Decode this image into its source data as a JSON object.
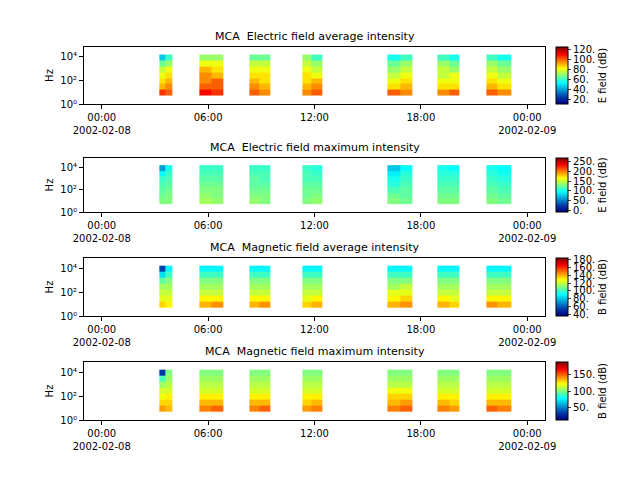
{
  "chart_data": [
    {
      "type": "heatmap",
      "title": "MCA  Electric field average intensity",
      "y_label": "Hz",
      "colorbar_title": "E field (dB)",
      "log": "y",
      "x": [
        "2002-02-08 03:15",
        "2002-02-08 03:35",
        "2002-02-08 04:00",
        "2002-02-08 05:30",
        "2002-02-08 06:10",
        "2002-02-08 06:50",
        "2002-02-08 08:20",
        "2002-02-08 08:55",
        "2002-02-08 09:30",
        "2002-02-08 11:20",
        "2002-02-08 11:50",
        "2002-02-08 12:25",
        "2002-02-08 16:05",
        "2002-02-08 16:50",
        "2002-02-08 17:30",
        "2002-02-08 18:55",
        "2002-02-08 19:35",
        "2002-02-08 20:10",
        "2002-02-08 21:40",
        "2002-02-08 22:20",
        "2002-02-08 23:05"
      ],
      "y": [
        5,
        16,
        50,
        160,
        500,
        1600,
        5000,
        16000
      ],
      "z": [
        [
          105,
          100,
          null,
          110,
          105,
          null,
          100,
          95,
          null,
          95,
          100,
          null,
          100,
          95,
          null,
          95,
          100,
          null,
          100,
          95
        ],
        [
          90,
          95,
          null,
          100,
          100,
          null,
          95,
          90,
          null,
          90,
          95,
          null,
          85,
          90,
          null,
          85,
          85,
          null,
          90,
          85
        ],
        [
          85,
          90,
          null,
          95,
          100,
          null,
          90,
          85,
          null,
          85,
          90,
          null,
          80,
          85,
          null,
          80,
          80,
          null,
          85,
          80
        ],
        [
          80,
          85,
          null,
          95,
          90,
          null,
          85,
          85,
          null,
          85,
          80,
          null,
          75,
          80,
          null,
          75,
          80,
          null,
          80,
          75
        ],
        [
          75,
          80,
          null,
          90,
          85,
          null,
          80,
          80,
          null,
          80,
          75,
          null,
          70,
          75,
          null,
          75,
          70,
          null,
          75,
          70
        ],
        [
          65,
          70,
          null,
          80,
          80,
          null,
          75,
          75,
          null,
          75,
          70,
          null,
          65,
          70,
          null,
          70,
          65,
          null,
          70,
          65
        ],
        [
          45,
          60,
          null,
          70,
          70,
          null,
          65,
          65,
          null,
          70,
          60,
          null,
          55,
          60,
          null,
          60,
          55,
          null,
          60,
          55
        ]
      ],
      "xlim": [
        "2002-02-07 23:00",
        "2002-02-09 01:00"
      ],
      "xticks": [
        {
          "value": "2002-02-08 00:00",
          "label": "00:00\n2002-02-08"
        },
        {
          "value": "2002-02-08 06:00",
          "label": "06:00"
        },
        {
          "value": "2002-02-08 12:00",
          "label": "12:00"
        },
        {
          "value": "2002-02-08 18:00",
          "label": "18:00"
        },
        {
          "value": "2002-02-09 00:00",
          "label": "00:00\n2002-02-09"
        }
      ],
      "ylim": [
        1,
        70000
      ],
      "yticks": [
        {
          "value": 1,
          "label": "10⁰"
        },
        {
          "value": 100,
          "label": "10²"
        },
        {
          "value": 10000,
          "label": "10⁴"
        }
      ],
      "zlim": [
        10,
        125
      ],
      "zticks": [
        {
          "value": 20,
          "label": "20."
        },
        {
          "value": 40,
          "label": "40."
        },
        {
          "value": 60,
          "label": "60."
        },
        {
          "value": 80,
          "label": "80."
        },
        {
          "value": 100,
          "label": "100."
        },
        {
          "value": 120,
          "label": "120."
        }
      ]
    },
    {
      "type": "heatmap",
      "title": "MCA  Electric field maximum intensity",
      "y_label": "Hz",
      "colorbar_title": "E field (dB)",
      "log": "y",
      "x": [
        "2002-02-08 03:15",
        "2002-02-08 03:35",
        "2002-02-08 04:00",
        "2002-02-08 05:30",
        "2002-02-08 06:10",
        "2002-02-08 06:50",
        "2002-02-08 08:20",
        "2002-02-08 08:55",
        "2002-02-08 09:30",
        "2002-02-08 11:20",
        "2002-02-08 11:50",
        "2002-02-08 12:25",
        "2002-02-08 16:05",
        "2002-02-08 16:50",
        "2002-02-08 17:30",
        "2002-02-08 18:55",
        "2002-02-08 19:35",
        "2002-02-08 20:10",
        "2002-02-08 21:40",
        "2002-02-08 22:20",
        "2002-02-08 23:05"
      ],
      "y": [
        5,
        16,
        50,
        160,
        500,
        1600,
        5000,
        16000
      ],
      "z": [
        [
          130,
          130,
          null,
          140,
          135,
          null,
          135,
          130,
          null,
          130,
          135,
          null,
          130,
          125,
          null,
          130,
          130,
          null,
          130,
          125
        ],
        [
          125,
          130,
          null,
          135,
          130,
          null,
          130,
          130,
          null,
          125,
          130,
          null,
          125,
          120,
          null,
          125,
          125,
          null,
          125,
          120
        ],
        [
          120,
          125,
          null,
          130,
          130,
          null,
          125,
          125,
          null,
          125,
          125,
          null,
          115,
          120,
          null,
          120,
          120,
          null,
          120,
          115
        ],
        [
          115,
          120,
          null,
          125,
          125,
          null,
          120,
          120,
          null,
          120,
          120,
          null,
          105,
          115,
          null,
          115,
          115,
          null,
          115,
          110
        ],
        [
          110,
          115,
          null,
          120,
          120,
          null,
          120,
          115,
          null,
          115,
          115,
          null,
          100,
          110,
          null,
          110,
          110,
          null,
          110,
          105
        ],
        [
          95,
          110,
          null,
          115,
          115,
          null,
          115,
          115,
          null,
          115,
          110,
          null,
          90,
          105,
          null,
          105,
          105,
          null,
          105,
          100
        ],
        [
          60,
          100,
          null,
          110,
          110,
          null,
          110,
          110,
          null,
          110,
          105,
          null,
          75,
          95,
          null,
          100,
          95,
          null,
          100,
          95
        ]
      ],
      "xlim": [
        "2002-02-07 23:00",
        "2002-02-09 01:00"
      ],
      "xticks": [
        {
          "value": "2002-02-08 00:00",
          "label": "00:00\n2002-02-08"
        },
        {
          "value": "2002-02-08 06:00",
          "label": "06:00"
        },
        {
          "value": "2002-02-08 12:00",
          "label": "12:00"
        },
        {
          "value": "2002-02-08 18:00",
          "label": "18:00"
        },
        {
          "value": "2002-02-09 00:00",
          "label": "00:00\n2002-02-09"
        }
      ],
      "ylim": [
        1,
        70000
      ],
      "yticks": [
        {
          "value": 1,
          "label": "10⁰"
        },
        {
          "value": 100,
          "label": "10²"
        },
        {
          "value": 10000,
          "label": "10⁴"
        }
      ],
      "zlim": [
        -10,
        270
      ],
      "zticks": [
        {
          "value": 0,
          "label": "0."
        },
        {
          "value": 50,
          "label": "50."
        },
        {
          "value": 100,
          "label": "100."
        },
        {
          "value": 150,
          "label": "150."
        },
        {
          "value": 200,
          "label": "200."
        },
        {
          "value": 250,
          "label": "250."
        }
      ]
    },
    {
      "type": "heatmap",
      "title": "MCA  Magnetic field average intensity",
      "y_label": "Hz",
      "colorbar_title": "B field (dB)",
      "log": "y",
      "x": [
        "2002-02-08 03:15",
        "2002-02-08 03:35",
        "2002-02-08 04:00",
        "2002-02-08 05:30",
        "2002-02-08 06:10",
        "2002-02-08 06:50",
        "2002-02-08 08:20",
        "2002-02-08 08:55",
        "2002-02-08 09:30",
        "2002-02-08 11:20",
        "2002-02-08 11:50",
        "2002-02-08 12:25",
        "2002-02-08 16:05",
        "2002-02-08 16:50",
        "2002-02-08 17:30",
        "2002-02-08 18:55",
        "2002-02-08 19:35",
        "2002-02-08 20:10",
        "2002-02-08 21:40",
        "2002-02-08 22:20",
        "2002-02-08 23:05"
      ],
      "y": [
        5,
        16,
        50,
        160,
        500,
        1600,
        5000,
        16000
      ],
      "z": [
        [
          135,
          130,
          null,
          140,
          145,
          null,
          140,
          145,
          null,
          135,
          140,
          null,
          140,
          145,
          null,
          140,
          135,
          null,
          145,
          140
        ],
        [
          125,
          125,
          null,
          130,
          130,
          null,
          130,
          130,
          null,
          125,
          130,
          null,
          130,
          135,
          null,
          130,
          125,
          null,
          130,
          130
        ],
        [
          120,
          120,
          null,
          120,
          120,
          null,
          120,
          120,
          null,
          120,
          120,
          null,
          125,
          125,
          null,
          120,
          120,
          null,
          120,
          120
        ],
        [
          115,
          115,
          null,
          115,
          115,
          null,
          115,
          115,
          null,
          115,
          115,
          null,
          115,
          120,
          null,
          115,
          115,
          null,
          115,
          115
        ],
        [
          105,
          110,
          null,
          110,
          110,
          null,
          110,
          110,
          null,
          110,
          110,
          null,
          110,
          110,
          null,
          110,
          110,
          null,
          110,
          110
        ],
        [
          85,
          100,
          null,
          100,
          100,
          null,
          100,
          100,
          null,
          100,
          100,
          null,
          100,
          100,
          null,
          100,
          100,
          null,
          100,
          100
        ],
        [
          55,
          90,
          null,
          90,
          90,
          null,
          90,
          90,
          null,
          90,
          90,
          null,
          90,
          90,
          null,
          90,
          90,
          null,
          90,
          90
        ]
      ],
      "xlim": [
        "2002-02-07 23:00",
        "2002-02-09 01:00"
      ],
      "xticks": [
        {
          "value": "2002-02-08 00:00",
          "label": "00:00\n2002-02-08"
        },
        {
          "value": "2002-02-08 06:00",
          "label": "06:00"
        },
        {
          "value": "2002-02-08 12:00",
          "label": "12:00"
        },
        {
          "value": "2002-02-08 18:00",
          "label": "18:00"
        },
        {
          "value": "2002-02-09 00:00",
          "label": "00:00\n2002-02-09"
        }
      ],
      "ylim": [
        1,
        70000
      ],
      "yticks": [
        {
          "value": 1,
          "label": "10⁰"
        },
        {
          "value": 100,
          "label": "10²"
        },
        {
          "value": 10000,
          "label": "10⁴"
        }
      ],
      "zlim": [
        35,
        185
      ],
      "zticks": [
        {
          "value": 40,
          "label": "40."
        },
        {
          "value": 60,
          "label": "60."
        },
        {
          "value": 80,
          "label": "80."
        },
        {
          "value": 100,
          "label": "100."
        },
        {
          "value": 120,
          "label": "120."
        },
        {
          "value": 140,
          "label": "140."
        },
        {
          "value": 160,
          "label": "160."
        },
        {
          "value": 180,
          "label": "180."
        }
      ]
    },
    {
      "type": "heatmap",
      "title": "MCA  Magnetic field maximum intensity",
      "y_label": "Hz",
      "colorbar_title": "B field (dB)",
      "log": "y",
      "x": [
        "2002-02-08 03:15",
        "2002-02-08 03:35",
        "2002-02-08 04:00",
        "2002-02-08 05:30",
        "2002-02-08 06:10",
        "2002-02-08 06:50",
        "2002-02-08 08:20",
        "2002-02-08 08:55",
        "2002-02-08 09:30",
        "2002-02-08 11:20",
        "2002-02-08 11:50",
        "2002-02-08 12:25",
        "2002-02-08 16:05",
        "2002-02-08 16:50",
        "2002-02-08 17:30",
        "2002-02-08 18:55",
        "2002-02-08 19:35",
        "2002-02-08 20:10",
        "2002-02-08 21:40",
        "2002-02-08 22:20",
        "2002-02-08 23:05"
      ],
      "y": [
        5,
        16,
        50,
        160,
        500,
        1600,
        5000,
        16000
      ],
      "z": [
        [
          140,
          135,
          null,
          145,
          150,
          null,
          145,
          150,
          null,
          140,
          145,
          null,
          145,
          150,
          null,
          145,
          140,
          null,
          150,
          145
        ],
        [
          130,
          130,
          null,
          135,
          135,
          null,
          135,
          135,
          null,
          130,
          135,
          null,
          135,
          140,
          null,
          135,
          130,
          null,
          135,
          135
        ],
        [
          120,
          125,
          null,
          125,
          125,
          null,
          125,
          125,
          null,
          125,
          125,
          null,
          130,
          130,
          null,
          125,
          125,
          null,
          125,
          125
        ],
        [
          115,
          115,
          null,
          115,
          115,
          null,
          115,
          115,
          null,
          115,
          115,
          null,
          120,
          120,
          null,
          115,
          115,
          null,
          115,
          115
        ],
        [
          105,
          110,
          null,
          110,
          110,
          null,
          110,
          110,
          null,
          110,
          110,
          null,
          110,
          110,
          null,
          110,
          110,
          null,
          110,
          110
        ],
        [
          90,
          105,
          null,
          105,
          105,
          null,
          105,
          105,
          null,
          105,
          105,
          null,
          105,
          105,
          null,
          105,
          105,
          null,
          105,
          105
        ],
        [
          30,
          100,
          null,
          100,
          100,
          null,
          100,
          100,
          null,
          100,
          100,
          null,
          100,
          100,
          null,
          100,
          100,
          null,
          100,
          100
        ]
      ],
      "xlim": [
        "2002-02-07 23:00",
        "2002-02-09 01:00"
      ],
      "xticks": [
        {
          "value": "2002-02-08 00:00",
          "label": "00:00\n2002-02-08"
        },
        {
          "value": "2002-02-08 06:00",
          "label": "06:00"
        },
        {
          "value": "2002-02-08 12:00",
          "label": "12:00"
        },
        {
          "value": "2002-02-08 18:00",
          "label": "18:00"
        },
        {
          "value": "2002-02-09 00:00",
          "label": "00:00\n2002-02-09"
        }
      ],
      "ylim": [
        1,
        70000
      ],
      "yticks": [
        {
          "value": 1,
          "label": "10⁰"
        },
        {
          "value": 100,
          "label": "10²"
        },
        {
          "value": 10000,
          "label": "10⁴"
        }
      ],
      "zlim": [
        10,
        190
      ],
      "zticks": [
        {
          "value": 50,
          "label": "50."
        },
        {
          "value": 100,
          "label": "100."
        },
        {
          "value": 150,
          "label": "150."
        }
      ]
    }
  ]
}
